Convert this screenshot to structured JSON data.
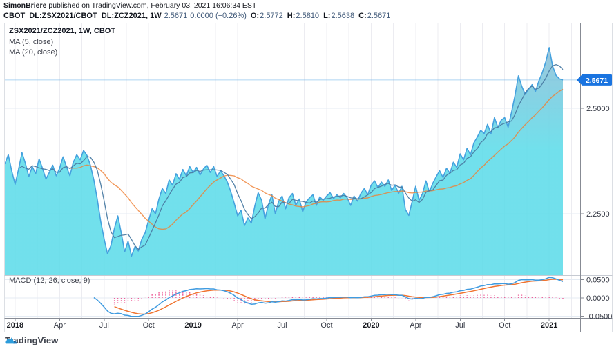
{
  "header": {
    "byline_author": "SimonBriere",
    "byline_rest": " published on TradingView.com, February 03, 2021 16:06:34 EST",
    "symbol": "CBOT_DL:ZSX2021/CBOT_DL:ZCZ2021, 1W",
    "last_price": "2.5671",
    "change": "0.0000 (−0.26%)",
    "ohlc": [
      {
        "k": "O",
        "v": "2.5772"
      },
      {
        "k": "H",
        "v": "2.5810"
      },
      {
        "k": "L",
        "v": "2.5638"
      },
      {
        "k": "C",
        "v": "2.5671"
      }
    ]
  },
  "main_legend": {
    "title": "ZSX2021/ZCZ2021, 1W, CBOT",
    "ma5": "MA (5, close)",
    "ma20": "MA (20, close)"
  },
  "macd_legend": "MACD (12, 26, close, 9)",
  "footer": {
    "brand": "TradingView"
  },
  "colors": {
    "price_line": "#45a1de",
    "area_top": "#9fb9d3",
    "area_mid": "#74cde1",
    "area_cyan": "#5edce9",
    "ma5": "#4a7ba3",
    "ma20": "#ef7f33",
    "macd": "#3f9be0",
    "signal": "#f07430",
    "histogram": "#ed4e8e",
    "grid_v": "#ececf1",
    "grid_h": "#e4ebf3",
    "frame_light": "#dcdfe4",
    "separator": "#c6cad2",
    "axis_line": "#878b94",
    "axis_text": "#363a45",
    "year_text": "#16181e",
    "price_tag_bg": "#1a74e0",
    "last_price_line": "#6db4e8",
    "logo_blue": "#2d9cdb",
    "logo_dark": "#1b73b8"
  },
  "chart_data": {
    "type": "area",
    "title": "ZSX2021/ZCZ2021 weekly ratio with MA(5), MA(20) overlays and MACD(12, 26, close, 9)",
    "x_range": [
      "Jan 2018",
      "Feb 2021"
    ],
    "interval": "1W",
    "grid": true,
    "legend_position": "top-left",
    "x_tick_labels": [
      "2018",
      "Apr",
      "Jul",
      "Oct",
      "2019",
      "Apr",
      "Jul",
      "Oct",
      "2020",
      "Apr",
      "Jul",
      "Oct",
      "2021"
    ],
    "x_tick_indices": [
      3,
      16,
      29,
      42,
      55,
      68,
      81,
      94,
      107,
      120,
      133,
      146,
      159
    ],
    "price_axis_labels": [
      "2.5000",
      "2.2500"
    ],
    "price_axis_values": [
      2.5,
      2.25
    ],
    "y_axis_range_main": [
      2.104,
      2.701
    ],
    "macd_axis_labels": [
      "0.0500",
      "0.0000",
      "-0.0500"
    ],
    "macd_axis_values": [
      0.05,
      0.0,
      -0.05
    ],
    "y_axis_range_macd": [
      -0.0547,
      0.0641
    ],
    "last_price_label": "2.5671",
    "last_price_value": 2.5671,
    "series": [
      {
        "name": "close",
        "values": [
          2.368,
          2.39,
          2.352,
          2.32,
          2.355,
          2.395,
          2.37,
          2.338,
          2.362,
          2.345,
          2.38,
          2.358,
          2.332,
          2.348,
          2.365,
          2.34,
          2.358,
          2.385,
          2.362,
          2.34,
          2.372,
          2.39,
          2.378,
          2.4,
          2.388,
          2.365,
          2.33,
          2.285,
          2.232,
          2.19,
          2.155,
          2.175,
          2.215,
          2.245,
          2.205,
          2.16,
          2.185,
          2.15,
          2.172,
          2.162,
          2.19,
          2.205,
          2.235,
          2.262,
          2.25,
          2.285,
          2.31,
          2.298,
          2.33,
          2.318,
          2.345,
          2.332,
          2.355,
          2.34,
          2.362,
          2.348,
          2.36,
          2.342,
          2.356,
          2.365,
          2.348,
          2.362,
          2.338,
          2.352,
          2.34,
          2.325,
          2.302,
          2.275,
          2.245,
          2.258,
          2.222,
          2.24,
          2.228,
          2.268,
          2.3,
          2.282,
          2.238,
          2.272,
          2.295,
          2.25,
          2.28,
          2.292,
          2.262,
          2.288,
          2.298,
          2.27,
          2.285,
          2.255,
          2.278,
          2.288,
          2.295,
          2.27,
          2.29,
          2.282,
          2.292,
          2.3,
          2.286,
          2.295,
          2.288,
          2.298,
          2.288,
          2.27,
          2.292,
          2.28,
          2.298,
          2.31,
          2.295,
          2.318,
          2.328,
          2.312,
          2.325,
          2.315,
          2.33,
          2.305,
          2.318,
          2.298,
          2.315,
          2.26,
          2.246,
          2.28,
          2.315,
          2.282,
          2.298,
          2.328,
          2.302,
          2.322,
          2.338,
          2.352,
          2.336,
          2.358,
          2.346,
          2.372,
          2.36,
          2.392,
          2.378,
          2.405,
          2.39,
          2.418,
          2.432,
          2.448,
          2.44,
          2.462,
          2.44,
          2.478,
          2.455,
          2.472,
          2.478,
          2.455,
          2.49,
          2.53,
          2.577,
          2.552,
          2.533,
          2.545,
          2.556,
          2.54,
          2.565,
          2.585,
          2.61,
          2.644,
          2.6,
          2.578,
          2.57,
          2.5671
        ]
      },
      {
        "name": "MA (5, close)",
        "derived": "sma",
        "period": 5
      },
      {
        "name": "MA (20, close)",
        "derived": "sma",
        "period": 20
      },
      {
        "name": "MACD (12,26,close,9)",
        "derived": "macd",
        "fast": 12,
        "slow": 26,
        "signal": 9
      }
    ]
  }
}
